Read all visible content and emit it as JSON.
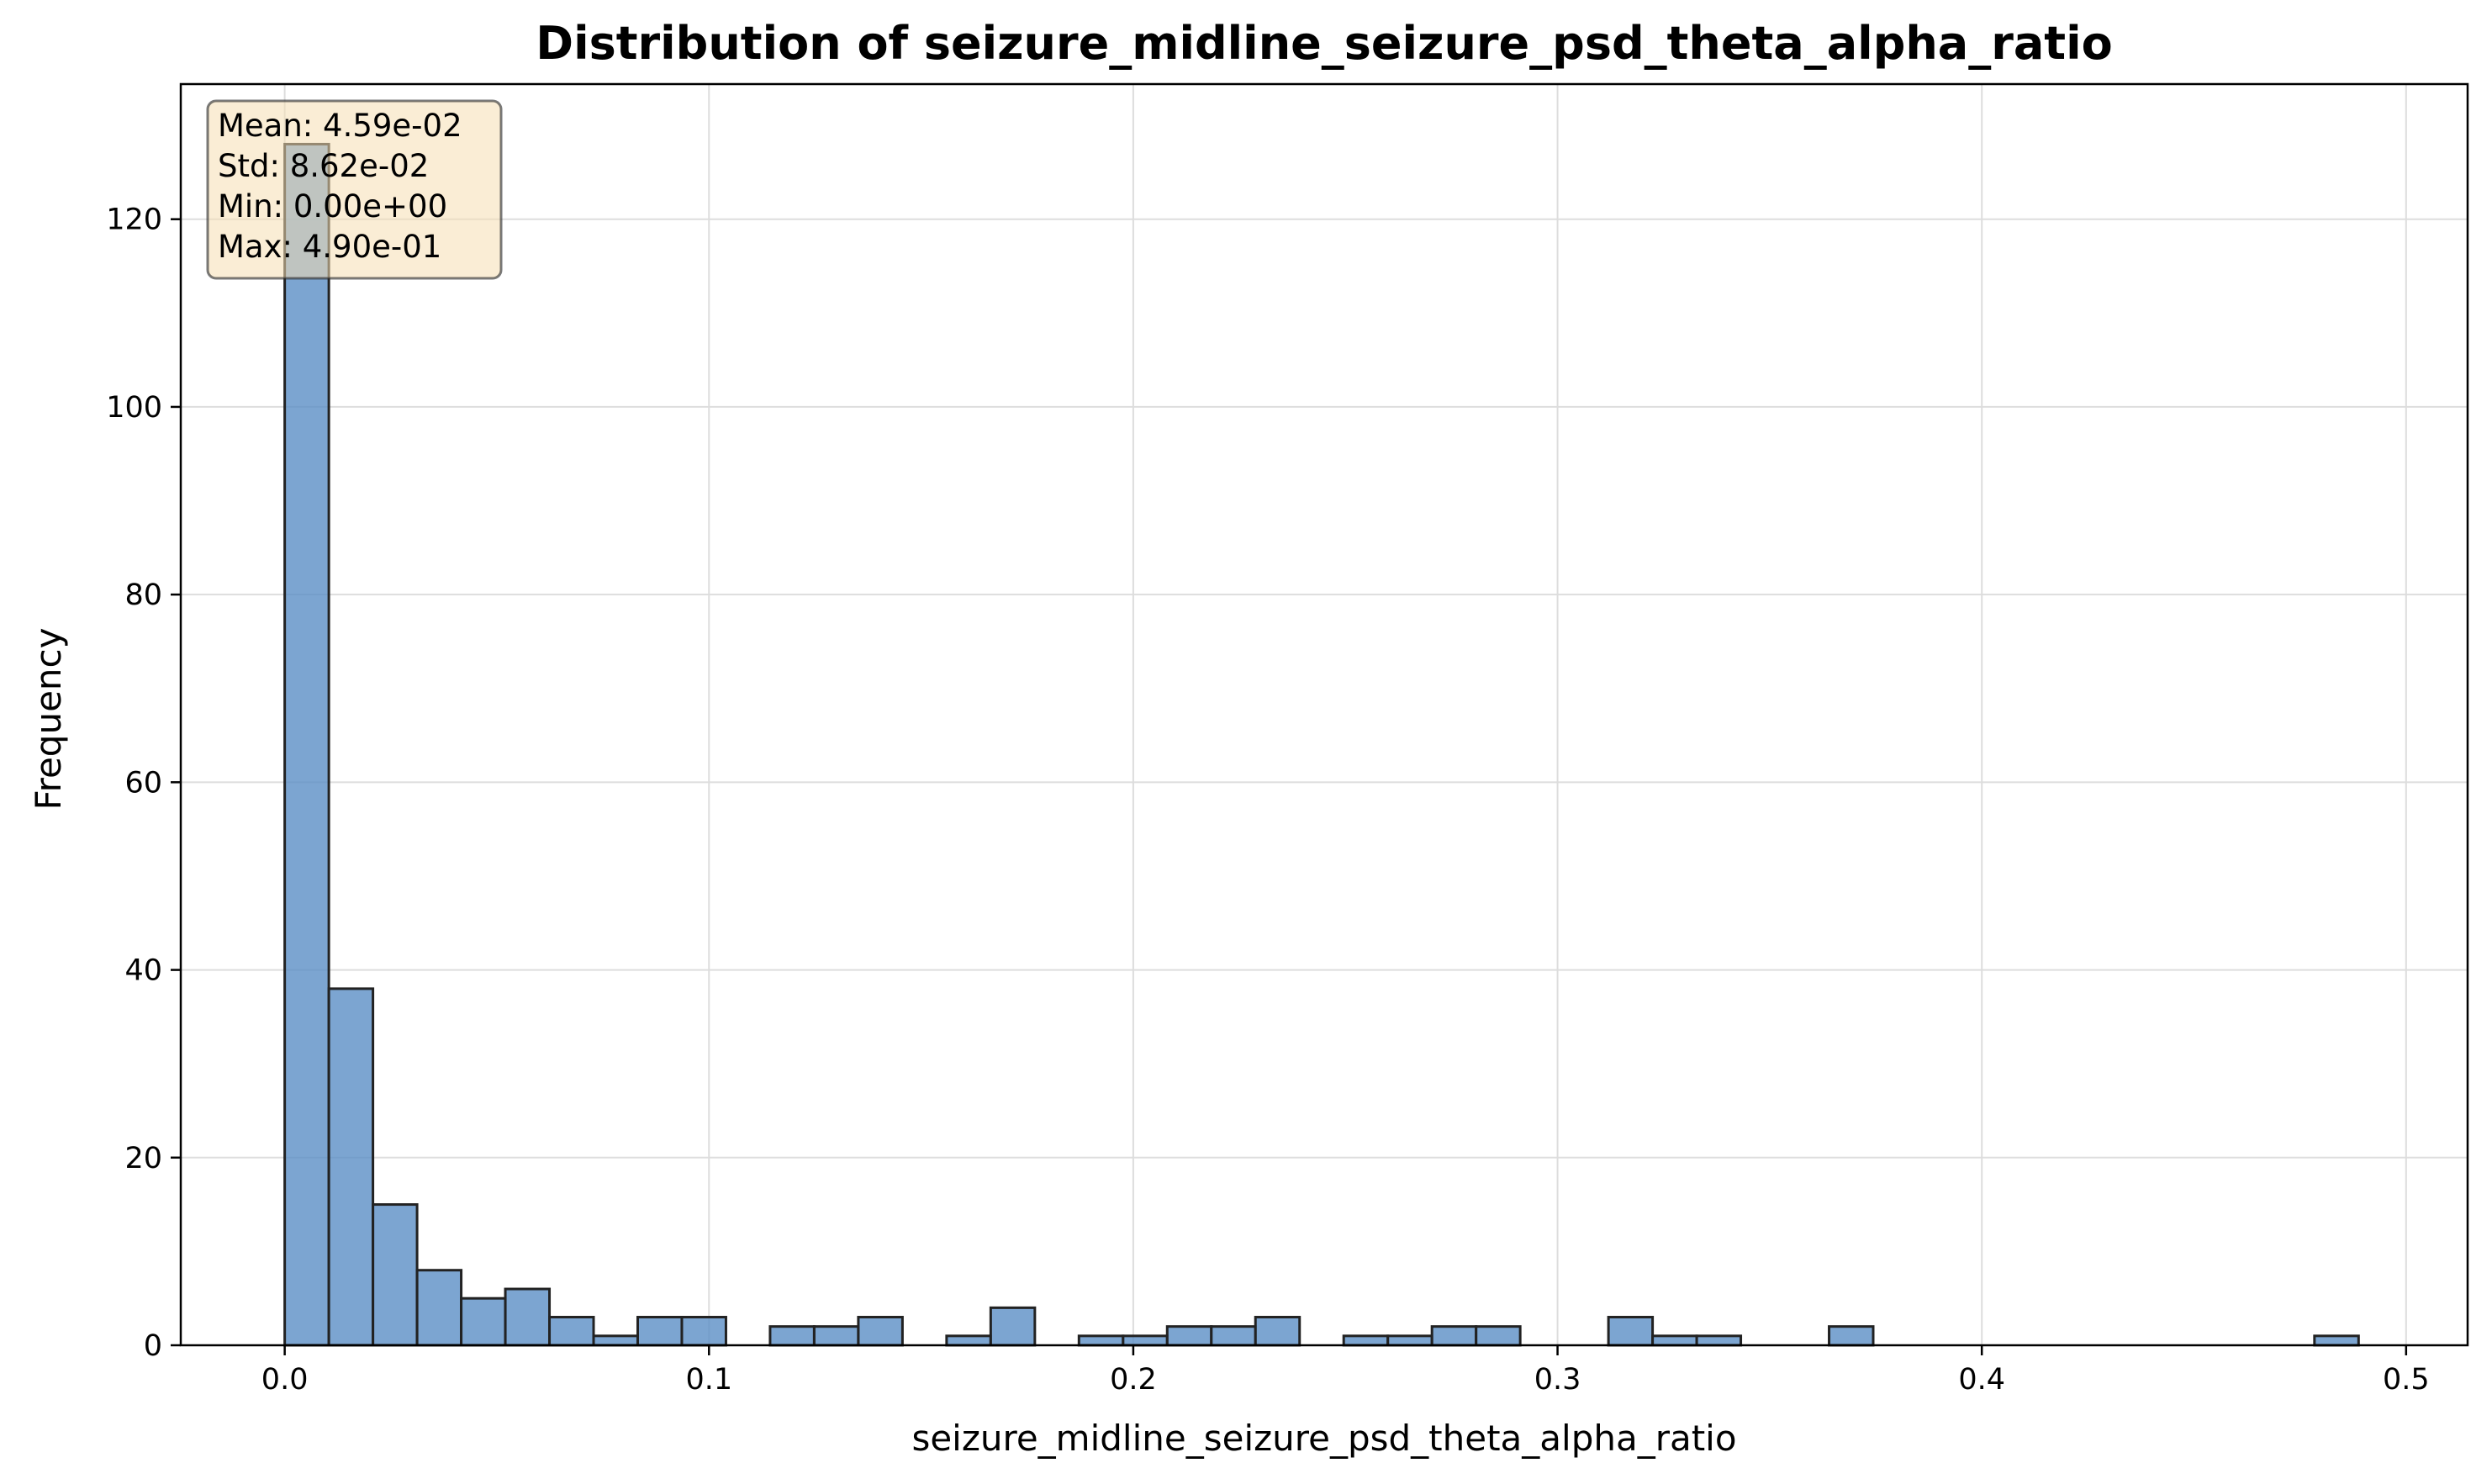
{
  "chart_data": {
    "type": "bar",
    "title": "Distribution of seizure_midline_seizure_psd_theta_alpha_ratio",
    "xlabel": "seizure_midline_seizure_psd_theta_alpha_ratio",
    "ylabel": "Frequency",
    "xlim": [
      -0.0245,
      0.5145
    ],
    "ylim": [
      0,
      134.4
    ],
    "x_ticks": [
      0.0,
      0.1,
      0.2,
      0.3,
      0.4,
      0.5
    ],
    "x_tick_labels": [
      "0.0",
      "0.1",
      "0.2",
      "0.3",
      "0.4",
      "0.5"
    ],
    "y_ticks": [
      0,
      20,
      40,
      60,
      80,
      100,
      120
    ],
    "y_tick_labels": [
      "0",
      "20",
      "40",
      "60",
      "80",
      "100",
      "120"
    ],
    "bin_start": 0.0,
    "bin_width": 0.0104,
    "counts": [
      128,
      38,
      15,
      8,
      5,
      6,
      3,
      1,
      3,
      3,
      0,
      2,
      2,
      3,
      0,
      1,
      4,
      0,
      1,
      1,
      2,
      2,
      3,
      0,
      1,
      1,
      2,
      2,
      0,
      0,
      3,
      1,
      1,
      0,
      0,
      2,
      0,
      0,
      0,
      0,
      0,
      0,
      0,
      0,
      0,
      0,
      1
    ],
    "grid": true,
    "bar_color": "#5b8fc5",
    "bar_edge_color": "#222222",
    "stats_box": {
      "position": "top-left",
      "lines": [
        "Mean: 4.59e-02",
        "Std: 8.62e-02",
        "Min: 0.00e+00",
        "Max: 4.90e-01"
      ],
      "background": "#f5deb3"
    }
  }
}
